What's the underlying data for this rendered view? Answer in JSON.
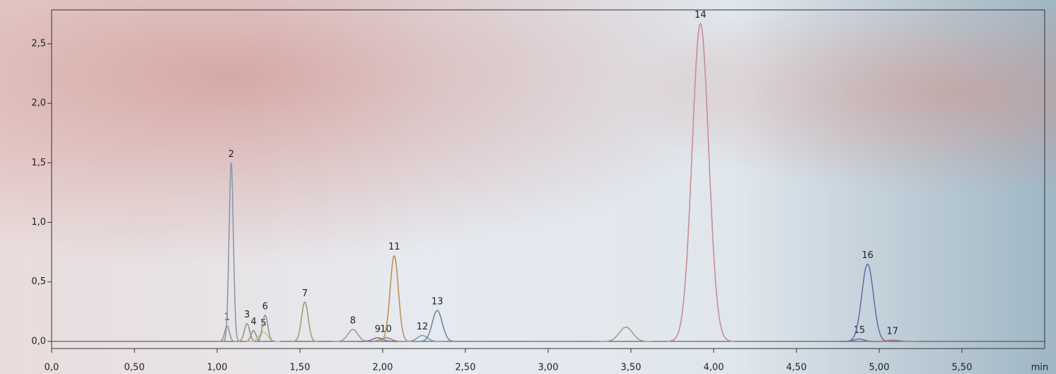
{
  "chart_data": {
    "type": "chromatogram",
    "x_label": "min",
    "xlim": [
      0,
      6.0
    ],
    "ylim": [
      -0.06,
      2.785
    ],
    "xticks": [
      {
        "value": 0,
        "label": "0,0"
      },
      {
        "value": 0.5,
        "label": "0,50"
      },
      {
        "value": 1,
        "label": "1,00"
      },
      {
        "value": 1.5,
        "label": "1,50"
      },
      {
        "value": 2,
        "label": "2,00"
      },
      {
        "value": 2.5,
        "label": "2,50"
      },
      {
        "value": 3,
        "label": "3,00"
      },
      {
        "value": 3.5,
        "label": "3,50"
      },
      {
        "value": 4,
        "label": "4,00"
      },
      {
        "value": 4.5,
        "label": "4,50"
      },
      {
        "value": 5,
        "label": "5,00"
      },
      {
        "value": 5.5,
        "label": "5,50"
      }
    ],
    "yticks": [
      {
        "value": 0,
        "label": "0,0"
      },
      {
        "value": 0.5,
        "label": "0,5"
      },
      {
        "value": 1,
        "label": "1,0"
      },
      {
        "value": 1.5,
        "label": "1,5"
      },
      {
        "value": 2,
        "label": "2,0"
      },
      {
        "value": 2.5,
        "label": "2,5"
      }
    ],
    "peaks": [
      {
        "label": "1",
        "time": 1.06,
        "height": 0.13,
        "width": 0.014,
        "color": "#8f9a80"
      },
      {
        "label": "2",
        "time": 1.085,
        "height": 1.5,
        "width": 0.013,
        "color": "#8a9aa8"
      },
      {
        "label": "3",
        "time": 1.18,
        "height": 0.15,
        "width": 0.016,
        "color": "#8f9a80"
      },
      {
        "label": "4",
        "time": 1.22,
        "height": 0.09,
        "width": 0.015,
        "color": "#a08a90"
      },
      {
        "label": "5",
        "time": 1.28,
        "height": 0.08,
        "width": 0.025,
        "color": "#c8c080"
      },
      {
        "label": "6",
        "time": 1.29,
        "height": 0.22,
        "width": 0.016,
        "color": "#8a9a90"
      },
      {
        "label": "7",
        "time": 1.53,
        "height": 0.33,
        "width": 0.02,
        "color": "#a0a070"
      },
      {
        "label": "8",
        "time": 1.82,
        "height": 0.1,
        "width": 0.03,
        "color": "#a0a080"
      },
      {
        "label": "9",
        "time": 1.97,
        "height": 0.03,
        "width": 0.03,
        "color": "#7070a0"
      },
      {
        "label": "10",
        "time": 2.02,
        "height": 0.03,
        "width": 0.03,
        "color": "#a08070"
      },
      {
        "label": "11",
        "time": 2.07,
        "height": 0.72,
        "width": 0.025,
        "color": "#c0905a"
      },
      {
        "label": "12",
        "time": 2.24,
        "height": 0.05,
        "width": 0.03,
        "color": "#8a9aa8"
      },
      {
        "label": "13",
        "time": 2.33,
        "height": 0.26,
        "width": 0.03,
        "color": "#6c8aa8"
      },
      {
        "label": null,
        "time": 3.47,
        "height": 0.12,
        "width": 0.04,
        "color": "#a0a080"
      },
      {
        "label": "14",
        "time": 3.92,
        "height": 2.67,
        "width": 0.05,
        "color": "#c98c95"
      },
      {
        "label": "15",
        "time": 4.88,
        "height": 0.02,
        "width": 0.03,
        "color": "#7070a0"
      },
      {
        "label": "16",
        "time": 4.93,
        "height": 0.65,
        "width": 0.035,
        "color": "#6a6fa8"
      },
      {
        "label": "17",
        "time": 5.08,
        "height": 0.01,
        "width": 0.04,
        "color": "#a08070"
      }
    ]
  }
}
